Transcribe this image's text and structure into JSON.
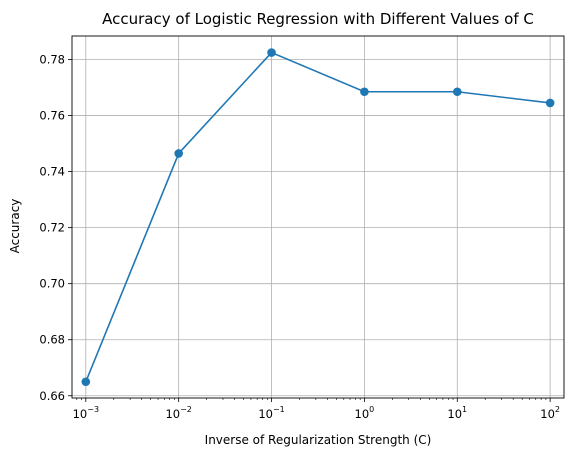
{
  "chart_data": {
    "type": "line",
    "title": "Accuracy of Logistic Regression with Different Values of C",
    "xlabel": "Inverse of Regularization Strength (C)",
    "ylabel": "Accuracy",
    "xscale": "log",
    "x": [
      0.001,
      0.01,
      0.1,
      1,
      10,
      100
    ],
    "series": [
      {
        "values": [
          0.665,
          0.7465,
          0.7825,
          0.7685,
          0.7685,
          0.7645
        ]
      }
    ],
    "xlim": [
      0.00071,
      141
    ],
    "ylim": [
      0.6592,
      0.7884
    ],
    "x_ticks": [
      {
        "value": 0.001,
        "base": "10",
        "exp": "−3"
      },
      {
        "value": 0.01,
        "base": "10",
        "exp": "−2"
      },
      {
        "value": 0.1,
        "base": "10",
        "exp": "−1"
      },
      {
        "value": 1,
        "base": "10",
        "exp": "0"
      },
      {
        "value": 10,
        "base": "10",
        "exp": "1"
      },
      {
        "value": 100,
        "base": "10",
        "exp": "2"
      }
    ],
    "y_ticks": [
      0.66,
      0.68,
      0.7,
      0.72,
      0.74,
      0.76,
      0.78
    ],
    "y_tick_labels": [
      "0.66",
      "0.68",
      "0.70",
      "0.72",
      "0.74",
      "0.76",
      "0.78"
    ],
    "grid": true,
    "marker": "circle",
    "colors": {
      "line": "#1f77b4",
      "grid": "#b0b0b0",
      "axes": "#000000"
    }
  }
}
